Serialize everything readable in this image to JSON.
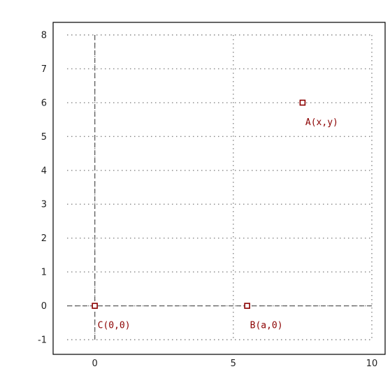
{
  "chart_data": {
    "type": "scatter",
    "title": "",
    "xlabel": "",
    "ylabel": "",
    "xlim": [
      -1,
      10
    ],
    "ylim": [
      -1,
      8
    ],
    "xticks": [
      0,
      5,
      10
    ],
    "yticks": [
      -1,
      0,
      1,
      2,
      3,
      4,
      5,
      6,
      7,
      8
    ],
    "x_tick_labels": [
      "0",
      "5",
      "10"
    ],
    "y_tick_labels": [
      "-1",
      "0",
      "1",
      "2",
      "3",
      "4",
      "5",
      "6",
      "7",
      "8"
    ],
    "grid": true,
    "reference_lines": [
      {
        "orientation": "vertical",
        "value": 0
      },
      {
        "orientation": "horizontal",
        "value": 0
      }
    ],
    "series": [
      {
        "points": [
          {
            "x": 7.5,
            "y": 6,
            "label": "A(x,y)"
          },
          {
            "x": 5.5,
            "y": 0,
            "label": "B(a,0)"
          },
          {
            "x": 0,
            "y": 0,
            "label": "C(0,0)"
          }
        ]
      }
    ]
  },
  "colors": {
    "point_and_label": "#8b0000",
    "grid": "#888888",
    "axis_lines": "#666666",
    "frame": "#000000",
    "tick_labels": "#222222"
  }
}
